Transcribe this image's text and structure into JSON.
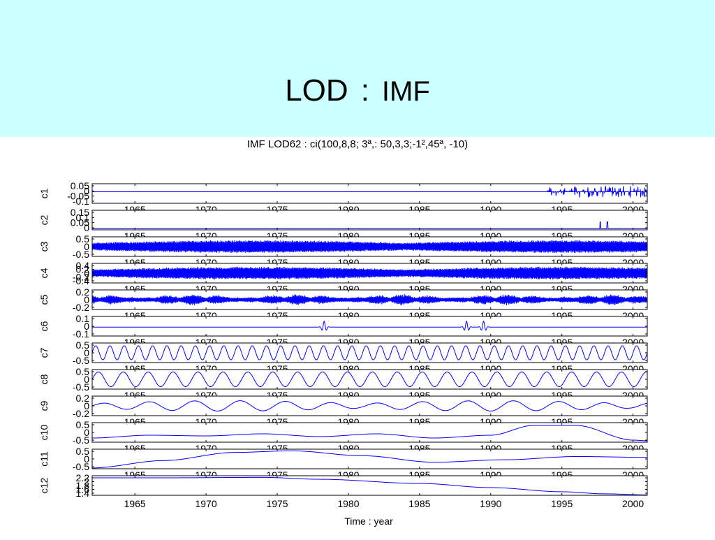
{
  "slide": {
    "title_main": "LOD",
    "title_sep": ":",
    "title_sub": "IMF",
    "header_color": "#ccffff"
  },
  "chart_data": {
    "type": "line",
    "title": "IMF LOD62 : ci(100,8,8; 3ª,: 50,3,3;-1²,45ª, -10)",
    "xlabel": "Time : year",
    "xlim": [
      1962,
      2001
    ],
    "x_ticks": [
      1965,
      1970,
      1975,
      1980,
      1985,
      1990,
      1995,
      2000
    ],
    "line_color": "#0000ff",
    "grid": false,
    "panels": [
      {
        "name": "c1",
        "ylim": [
          -0.1,
          0.07
        ],
        "y_ticks": [
          "0.05",
          "0",
          "-0.05",
          "-0.1"
        ],
        "pattern": "sparse_spikes",
        "active_ranges": [
          [
            1994,
            1996
          ],
          [
            1996,
            1998.5
          ],
          [
            1998.5,
            2001
          ]
        ],
        "amplitude": 0.05
      },
      {
        "name": "c2",
        "ylim": [
          -0.01,
          0.16
        ],
        "y_ticks": [
          "0.15",
          "0.1",
          "0.05",
          "0"
        ],
        "pattern": "rare_spikes",
        "spike_years": [
          1997.7,
          1998.2
        ],
        "amplitude": 0.06
      },
      {
        "name": "c3",
        "ylim": [
          -0.6,
          0.6
        ],
        "y_ticks": [
          "0.5",
          "0",
          "-0.5"
        ],
        "pattern": "dense_oscillation",
        "amplitude": 0.4
      },
      {
        "name": "c4",
        "ylim": [
          -0.45,
          0.45
        ],
        "y_ticks": [
          "0.4",
          "0.2",
          "0",
          "-0.2",
          "-0.4"
        ],
        "pattern": "dense_oscillation",
        "amplitude": 0.3
      },
      {
        "name": "c5",
        "ylim": [
          -0.3,
          0.3
        ],
        "y_ticks": [
          "0.2",
          "0",
          "-0.2"
        ],
        "pattern": "bursty_oscillation",
        "amplitude": 0.18
      },
      {
        "name": "c6",
        "ylim": [
          -0.15,
          0.18
        ],
        "y_ticks": [
          "0.1",
          "0",
          "-0.1"
        ],
        "pattern": "wave_packets",
        "packet_years": [
          1978.3,
          1988.3,
          1989.5
        ],
        "amplitude": 0.1
      },
      {
        "name": "c7",
        "ylim": [
          -0.7,
          0.7
        ],
        "y_ticks": [
          "0.5",
          "0",
          "-0.5"
        ],
        "pattern": "sinusoid",
        "period_years": 1.0,
        "amplitude": 0.5
      },
      {
        "name": "c8",
        "ylim": [
          -0.6,
          0.6
        ],
        "y_ticks": [
          "0.5",
          "0",
          "-0.5"
        ],
        "pattern": "sinusoid",
        "period_years": 1.75,
        "amplitude": 0.45
      },
      {
        "name": "c9",
        "ylim": [
          -0.25,
          0.25
        ],
        "y_ticks": [
          "0.2",
          "0",
          "-0.2"
        ],
        "pattern": "modulated_sinusoid",
        "period_years": 3.2,
        "amplitude": 0.12
      },
      {
        "name": "c10",
        "ylim": [
          -0.7,
          0.7
        ],
        "y_ticks": [
          "0.5",
          "0",
          "-0.5"
        ],
        "pattern": "smooth",
        "points": [
          [
            1962,
            -0.4
          ],
          [
            1966,
            -0.2
          ],
          [
            1970,
            -0.25
          ],
          [
            1974,
            -0.1
          ],
          [
            1978,
            -0.3
          ],
          [
            1982,
            -0.1
          ],
          [
            1986,
            -0.4
          ],
          [
            1990,
            -0.2
          ],
          [
            1993,
            0.5
          ],
          [
            1996,
            0.5
          ],
          [
            2000,
            -0.55
          ],
          [
            2001,
            -0.6
          ]
        ]
      },
      {
        "name": "c11",
        "ylim": [
          -0.6,
          0.6
        ],
        "y_ticks": [
          "0.5",
          "0",
          "-0.5"
        ],
        "pattern": "smooth",
        "points": [
          [
            1962,
            -0.55
          ],
          [
            1967,
            -0.1
          ],
          [
            1972,
            0.4
          ],
          [
            1976,
            0.5
          ],
          [
            1981,
            0.2
          ],
          [
            1986,
            -0.2
          ],
          [
            1991,
            -0.05
          ],
          [
            1996,
            0.15
          ],
          [
            2001,
            0.1
          ]
        ]
      },
      {
        "name": "c12",
        "ylim": [
          1.38,
          2.32
        ],
        "y_ticks": [
          "2.2",
          "2",
          "1.8",
          "1.6",
          "1.4"
        ],
        "pattern": "smooth",
        "points": [
          [
            1962,
            2.22
          ],
          [
            1967,
            2.22
          ],
          [
            1974,
            2.24
          ],
          [
            1978,
            2.15
          ],
          [
            1985,
            1.95
          ],
          [
            1990,
            1.75
          ],
          [
            1995,
            1.55
          ],
          [
            1998,
            1.45
          ],
          [
            2001,
            1.4
          ]
        ]
      }
    ]
  }
}
